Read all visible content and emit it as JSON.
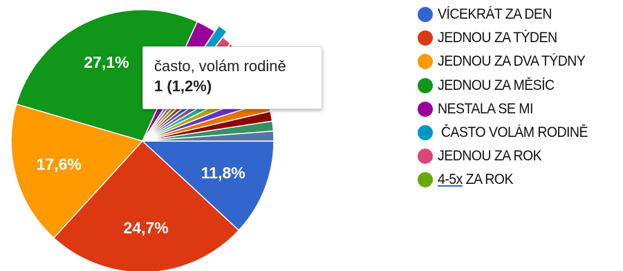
{
  "chart_data": {
    "type": "pie",
    "slices": [
      {
        "label": "VÍCEKRÁT ZA DEN",
        "value": 11.8,
        "value_label": "11,8%",
        "color": "#3366cc"
      },
      {
        "label": "JEDNOU ZA TÝDEN",
        "value": 24.7,
        "value_label": "24,7%",
        "color": "#dc3912"
      },
      {
        "label": "JEDNOU ZA DVA TÝDNY",
        "value": 17.6,
        "value_label": "17,6%",
        "color": "#ff9900"
      },
      {
        "label": "JEDNOU ZA MĚSÍC",
        "value": 27.1,
        "value_label": "27,1%",
        "color": "#109618"
      },
      {
        "label": "NESTALA SE MI",
        "value": 2.4,
        "value_label": "",
        "color": "#990099"
      },
      {
        "label": "ČASTO VOLÁM RODINĚ",
        "value": 1.2,
        "value_label": "",
        "color": "#0099c6"
      },
      {
        "label": "JEDNOU ZA ROK",
        "value": 1.2,
        "value_label": "",
        "color": "#dd4477"
      },
      {
        "label": "4-5x ZA ROK",
        "value": 1.2,
        "value_label": "",
        "color": "#66aa00"
      },
      {
        "label": "",
        "value": 1.2,
        "value_label": "",
        "color": "#b82e2e"
      },
      {
        "label": "",
        "value": 1.2,
        "value_label": "",
        "color": "#316395"
      },
      {
        "label": "",
        "value": 1.2,
        "value_label": "",
        "color": "#994499"
      },
      {
        "label": "",
        "value": 1.2,
        "value_label": "",
        "color": "#22aa99"
      },
      {
        "label": "",
        "value": 1.2,
        "value_label": "",
        "color": "#aaaa11"
      },
      {
        "label": "",
        "value": 1.2,
        "value_label": "",
        "color": "#6633cc"
      },
      {
        "label": "",
        "value": 1.2,
        "value_label": "",
        "color": "#e67300"
      },
      {
        "label": "",
        "value": 1.2,
        "value_label": "",
        "color": "#8b0707"
      },
      {
        "label": "",
        "value": 1.2,
        "value_label": "",
        "color": "#329262"
      },
      {
        "label": "",
        "value": 1.2,
        "value_label": "",
        "color": "#5574a6"
      }
    ],
    "legend_position": "right",
    "legend": [
      {
        "label": "VÍCEKRÁT ZA DEN",
        "color": "#3366cc"
      },
      {
        "label": "JEDNOU ZA TÝDEN",
        "color": "#dc3912"
      },
      {
        "label": "JEDNOU ZA DVA TÝDNY",
        "color": "#ff9900"
      },
      {
        "label": "JEDNOU ZA MĚSÍC",
        "color": "#109618"
      },
      {
        "label": "NESTALA SE MI",
        "color": "#990099"
      },
      {
        "label": " ČASTO VOLÁM RODINĚ",
        "color": "#0099c6"
      },
      {
        "label": "JEDNOU ZA ROK",
        "color": "#dd4477"
      },
      {
        "label_underlined": "4-5x",
        "label": " ZA ROK",
        "color": "#66aa00"
      }
    ]
  },
  "tooltip": {
    "title": "často, volám rodině",
    "value": "1 (1,2%)",
    "slice_index": 5
  }
}
